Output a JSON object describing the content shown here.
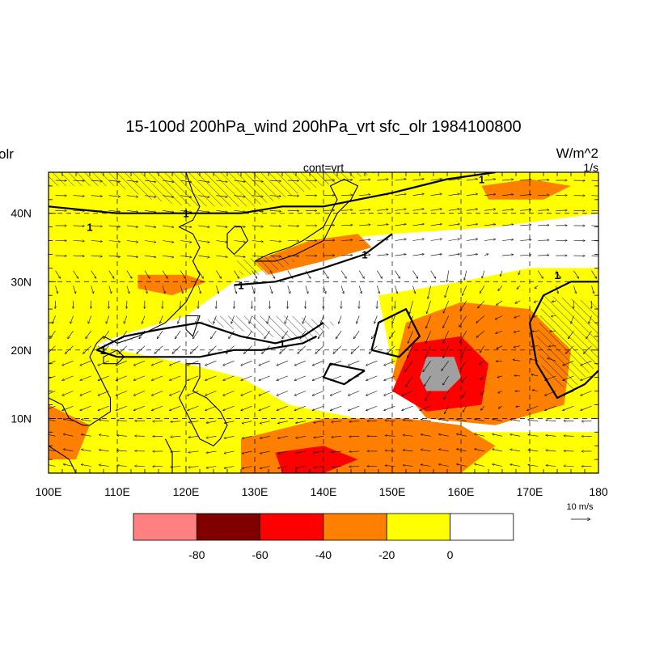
{
  "title": "15-100d 200hPa_wind 200hPa_vrt sfc_olr 1984100800",
  "left_string": "olr",
  "center_string": "cont=vrt",
  "right_units": "W/m^2",
  "right_units2": "1/s",
  "x_ticks": [
    "100E",
    "110E",
    "120E",
    "130E",
    "140E",
    "150E",
    "160E",
    "170E",
    "180"
  ],
  "y_ticks": [
    "10N",
    "20N",
    "30N",
    "40N"
  ],
  "ref_vector_label": "10 m/s",
  "contour_label": "1",
  "colors": {
    "white": "#ffffff",
    "yellow": "#ffff00",
    "orange": "#ff8000",
    "red": "#ff0000",
    "darkred": "#800000",
    "pink": "#ff8080",
    "grey_fill": "#a0a0a0",
    "hatch": "#000000",
    "coast": "#000000"
  },
  "colorbar": {
    "labels": [
      "-80",
      "-60",
      "-40",
      "-20",
      "0"
    ],
    "boxes": [
      "#ff8080",
      "#800000",
      "#ff0000",
      "#ff8000",
      "#ffff00",
      "#ffffff"
    ]
  },
  "map_data": {
    "lon_range": [
      100,
      180
    ],
    "lat_range": [
      2,
      46
    ],
    "regions": [
      {
        "level": "yellow",
        "poly": [
          [
            100,
            46
          ],
          [
            180,
            46
          ],
          [
            180,
            40
          ],
          [
            165,
            38
          ],
          [
            150,
            37
          ],
          [
            140,
            36
          ],
          [
            132,
            32
          ],
          [
            127,
            30
          ],
          [
            120,
            25
          ],
          [
            110,
            22
          ],
          [
            105,
            20
          ],
          [
            100,
            22
          ]
        ]
      },
      {
        "level": "yellow",
        "poly": [
          [
            100,
            22
          ],
          [
            110,
            20
          ],
          [
            120,
            18
          ],
          [
            128,
            16
          ],
          [
            135,
            12
          ],
          [
            145,
            10
          ],
          [
            155,
            8
          ],
          [
            165,
            8
          ],
          [
            180,
            8
          ],
          [
            180,
            2
          ],
          [
            100,
            2
          ]
        ]
      },
      {
        "level": "yellow",
        "poly": [
          [
            148,
            28
          ],
          [
            160,
            30
          ],
          [
            170,
            32
          ],
          [
            180,
            32
          ],
          [
            180,
            10
          ],
          [
            170,
            10
          ],
          [
            160,
            12
          ],
          [
            150,
            18
          ]
        ]
      },
      {
        "level": "orange",
        "poly": [
          [
            152,
            24
          ],
          [
            160,
            27
          ],
          [
            170,
            26
          ],
          [
            176,
            20
          ],
          [
            175,
            12
          ],
          [
            165,
            9
          ],
          [
            155,
            10
          ],
          [
            150,
            16
          ]
        ]
      },
      {
        "level": "orange",
        "poly": [
          [
            128,
            7
          ],
          [
            140,
            10
          ],
          [
            152,
            10
          ],
          [
            160,
            9
          ],
          [
            165,
            6
          ],
          [
            160,
            2
          ],
          [
            128,
            2
          ]
        ]
      },
      {
        "level": "orange",
        "poly": [
          [
            100,
            12
          ],
          [
            106,
            9
          ],
          [
            104,
            4
          ],
          [
            100,
            4
          ]
        ]
      },
      {
        "level": "orange",
        "poly": [
          [
            130,
            33
          ],
          [
            138,
            36
          ],
          [
            145,
            37
          ],
          [
            147,
            35
          ],
          [
            140,
            33
          ],
          [
            132,
            31
          ]
        ]
      },
      {
        "level": "orange",
        "poly": [
          [
            163,
            44
          ],
          [
            170,
            45
          ],
          [
            176,
            44
          ],
          [
            172,
            42
          ],
          [
            164,
            42
          ]
        ]
      },
      {
        "level": "orange",
        "poly": [
          [
            113,
            31
          ],
          [
            120,
            31
          ],
          [
            123,
            30
          ],
          [
            118,
            28
          ],
          [
            113,
            29
          ]
        ]
      },
      {
        "level": "red",
        "poly": [
          [
            153,
            21
          ],
          [
            160,
            22
          ],
          [
            164,
            18
          ],
          [
            163,
            12
          ],
          [
            155,
            11
          ],
          [
            150,
            14
          ]
        ]
      },
      {
        "level": "red",
        "poly": [
          [
            133,
            5
          ],
          [
            140,
            6
          ],
          [
            145,
            4
          ],
          [
            140,
            2
          ],
          [
            134,
            2
          ]
        ]
      },
      {
        "level": "grey_fill",
        "poly": [
          [
            155,
            19
          ],
          [
            159,
            19
          ],
          [
            160,
            16
          ],
          [
            158,
            14
          ],
          [
            155,
            14
          ],
          [
            154,
            16
          ]
        ]
      }
    ],
    "hatched": [
      {
        "poly": [
          [
            100,
            44
          ],
          [
            110,
            44
          ],
          [
            115,
            42
          ],
          [
            120,
            41
          ],
          [
            130,
            41
          ],
          [
            140,
            44
          ],
          [
            148,
            46
          ],
          [
            100,
            46
          ]
        ]
      },
      {
        "poly": [
          [
            106,
            20
          ],
          [
            115,
            22
          ],
          [
            122,
            24
          ],
          [
            132,
            22
          ],
          [
            138,
            21
          ],
          [
            142,
            24
          ],
          [
            135,
            25
          ],
          [
            125,
            25
          ],
          [
            115,
            22
          ],
          [
            108,
            21
          ]
        ]
      },
      {
        "poly": [
          [
            172,
            28
          ],
          [
            180,
            27
          ],
          [
            180,
            18
          ],
          [
            176,
            14
          ],
          [
            172,
            16
          ],
          [
            171,
            22
          ]
        ]
      },
      {
        "poly": [
          [
            127,
            33
          ],
          [
            133,
            34
          ],
          [
            136,
            33
          ],
          [
            132,
            31
          ],
          [
            128,
            31
          ]
        ]
      }
    ],
    "contours": [
      {
        "pts": [
          [
            100,
            41
          ],
          [
            110,
            40
          ],
          [
            120,
            40
          ],
          [
            128,
            40
          ],
          [
            134,
            41
          ],
          [
            140,
            41
          ],
          [
            145,
            42
          ],
          [
            150,
            43
          ],
          [
            158,
            45
          ],
          [
            165,
            46
          ]
        ]
      },
      {
        "pts": [
          [
            107,
            20
          ],
          [
            111,
            22
          ],
          [
            116,
            23
          ],
          [
            122,
            24
          ],
          [
            128,
            22
          ],
          [
            133,
            21
          ],
          [
            137,
            22
          ],
          [
            140,
            24
          ]
        ]
      },
      {
        "pts": [
          [
            107,
            20
          ],
          [
            110,
            19
          ],
          [
            115,
            19
          ],
          [
            122,
            19
          ],
          [
            127,
            20
          ],
          [
            131,
            20
          ],
          [
            137,
            21
          ],
          [
            139,
            22
          ]
        ]
      },
      {
        "pts": [
          [
            127,
            29.5
          ],
          [
            133,
            30
          ],
          [
            140,
            32
          ],
          [
            146,
            34
          ],
          [
            150,
            37
          ]
        ]
      },
      {
        "pts": [
          [
            170,
            24
          ],
          [
            172,
            28
          ],
          [
            176,
            30
          ],
          [
            180,
            30
          ]
        ]
      },
      {
        "pts": [
          [
            170,
            24
          ],
          [
            171,
            18
          ],
          [
            174,
            13
          ],
          [
            178,
            15
          ],
          [
            180,
            17
          ]
        ]
      },
      {
        "pts": [
          [
            147,
            20
          ],
          [
            148,
            24
          ],
          [
            152,
            26
          ],
          [
            154,
            22
          ],
          [
            151,
            19
          ],
          [
            147,
            20
          ]
        ]
      },
      {
        "pts": [
          [
            146,
            17
          ],
          [
            143,
            15
          ],
          [
            140,
            16
          ],
          [
            141,
            18
          ],
          [
            146,
            17
          ]
        ]
      }
    ],
    "coast": [
      {
        "pts": [
          [
            120,
            46
          ],
          [
            121,
            43
          ],
          [
            122,
            41
          ],
          [
            121,
            39
          ],
          [
            119,
            38
          ],
          [
            121,
            37
          ],
          [
            122,
            35
          ],
          [
            121,
            33
          ],
          [
            122,
            31
          ],
          [
            121,
            29
          ],
          [
            120,
            27
          ],
          [
            117,
            24
          ],
          [
            113,
            22
          ],
          [
            110,
            21
          ],
          [
            108,
            22
          ],
          [
            107,
            21
          ],
          [
            106,
            19
          ],
          [
            107,
            17
          ],
          [
            109,
            13
          ],
          [
            109,
            11
          ],
          [
            106,
            9
          ],
          [
            105,
            9
          ],
          [
            103,
            10
          ],
          [
            102,
            12
          ],
          [
            100,
            13
          ],
          [
            100,
            6
          ],
          [
            103,
            4
          ],
          [
            104,
            2
          ]
        ]
      },
      {
        "pts": [
          [
            128,
            38
          ],
          [
            129,
            36
          ],
          [
            128,
            35
          ],
          [
            127,
            34
          ],
          [
            126,
            35
          ],
          [
            126,
            37
          ],
          [
            127,
            38
          ],
          [
            128,
            38
          ]
        ]
      },
      {
        "pts": [
          [
            130,
            33
          ],
          [
            132,
            34
          ],
          [
            135,
            35
          ],
          [
            137,
            36
          ],
          [
            140,
            38
          ],
          [
            141,
            40
          ],
          [
            142,
            42
          ],
          [
            141,
            44
          ],
          [
            143,
            45
          ],
          [
            145,
            44
          ],
          [
            144,
            42
          ],
          [
            142,
            40
          ],
          [
            140,
            36
          ],
          [
            136,
            34
          ],
          [
            133,
            33
          ],
          [
            130,
            33
          ]
        ]
      },
      {
        "pts": [
          [
            120,
            25
          ],
          [
            122,
            25
          ],
          [
            121,
            22
          ],
          [
            120,
            23
          ],
          [
            120,
            25
          ]
        ]
      },
      {
        "pts": [
          [
            120,
            18
          ],
          [
            122,
            18
          ],
          [
            122,
            16
          ],
          [
            121,
            14
          ],
          [
            123,
            13
          ],
          [
            124,
            12
          ],
          [
            125,
            11
          ],
          [
            126,
            9
          ],
          [
            125,
            7
          ],
          [
            124,
            6
          ],
          [
            122,
            7
          ],
          [
            121,
            9
          ],
          [
            120,
            11
          ],
          [
            119,
            13
          ],
          [
            120,
            15
          ],
          [
            120,
            18
          ]
        ]
      },
      {
        "pts": [
          [
            108,
            18
          ],
          [
            110,
            18
          ],
          [
            111,
            19
          ],
          [
            110,
            20
          ],
          [
            108,
            19
          ],
          [
            108,
            18
          ]
        ]
      },
      {
        "pts": [
          [
            117,
            7
          ],
          [
            118,
            5
          ],
          [
            118,
            2
          ]
        ]
      }
    ]
  }
}
